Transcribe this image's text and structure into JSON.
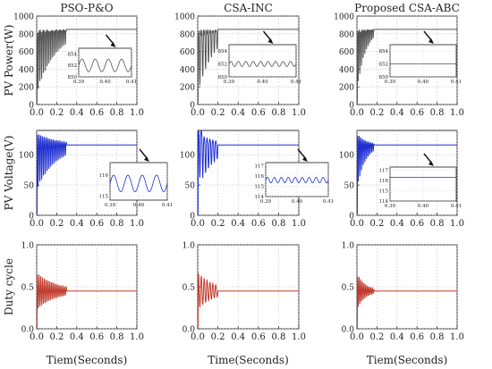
{
  "chart_data": {
    "type": "line",
    "grid": true,
    "x_ticks": [
      "0.0",
      "0.2",
      "0.4",
      "0.6",
      "0.8",
      "1.0"
    ],
    "x_range": [
      0,
      1
    ],
    "columns": [
      {
        "title": "PSO-P&O",
        "xlabel": "Tiem(Seconds)"
      },
      {
        "title": "CSA-INC",
        "xlabel": "Time(Seconds)"
      },
      {
        "title": "Proposed CSA-ABC",
        "xlabel": "Tiem(Seconds)"
      }
    ],
    "rows": [
      {
        "ylabel": "PV Power(W)",
        "ylim": [
          0,
          1000
        ],
        "y_ticks": [
          "0",
          "200",
          "400",
          "600",
          "800",
          "1000"
        ],
        "color": "#555555",
        "steady": 850
      },
      {
        "ylabel": "PV Voltage(V)",
        "ylim": [
          0,
          140
        ],
        "y_ticks": [
          "0",
          "50",
          "100"
        ],
        "color": "#1f2fd0",
        "steady": 116
      },
      {
        "ylabel": "Duty cycle",
        "ylim": [
          0,
          1
        ],
        "y_ticks": [
          "0.0",
          "0.5",
          "1.0"
        ],
        "color": "#c0392b",
        "steady": 0.45
      }
    ],
    "insets": [
      {
        "row": 0,
        "col": 0,
        "x_ticks": [
          "0.39",
          "0.40",
          "0.41"
        ],
        "y_ticks": [
          "850",
          "852",
          "854"
        ],
        "ylim": [
          850,
          855
        ],
        "ripple": "large"
      },
      {
        "row": 0,
        "col": 1,
        "x_ticks": [
          "0.39",
          "0.40",
          "0.41"
        ],
        "y_ticks": [
          "850",
          "852",
          "854"
        ],
        "ylim": [
          850,
          855
        ],
        "ripple": "small"
      },
      {
        "row": 0,
        "col": 2,
        "x_ticks": [
          "0.39",
          "0.40",
          "0.41"
        ],
        "y_ticks": [
          "850",
          "852",
          "854"
        ],
        "ylim": [
          850,
          855
        ],
        "ripple": "none"
      },
      {
        "row": 1,
        "col": 0,
        "x_ticks": [
          "0.39",
          "0.40",
          "0.41"
        ],
        "y_ticks": [
          "115",
          "116"
        ],
        "ylim": [
          114.8,
          116.6
        ],
        "ripple": "large"
      },
      {
        "row": 1,
        "col": 1,
        "x_ticks": [
          "0.39",
          "0.40",
          "0.41"
        ],
        "y_ticks": [
          "114",
          "115",
          "116",
          "117"
        ],
        "ylim": [
          114,
          117.3
        ],
        "ripple": "small"
      },
      {
        "row": 1,
        "col": 2,
        "x_ticks": [
          "0.39",
          "0.40",
          "0.41"
        ],
        "y_ticks": [
          "114",
          "115",
          "116",
          "117"
        ],
        "ylim": [
          114,
          117.3
        ],
        "ripple": "none"
      }
    ]
  }
}
